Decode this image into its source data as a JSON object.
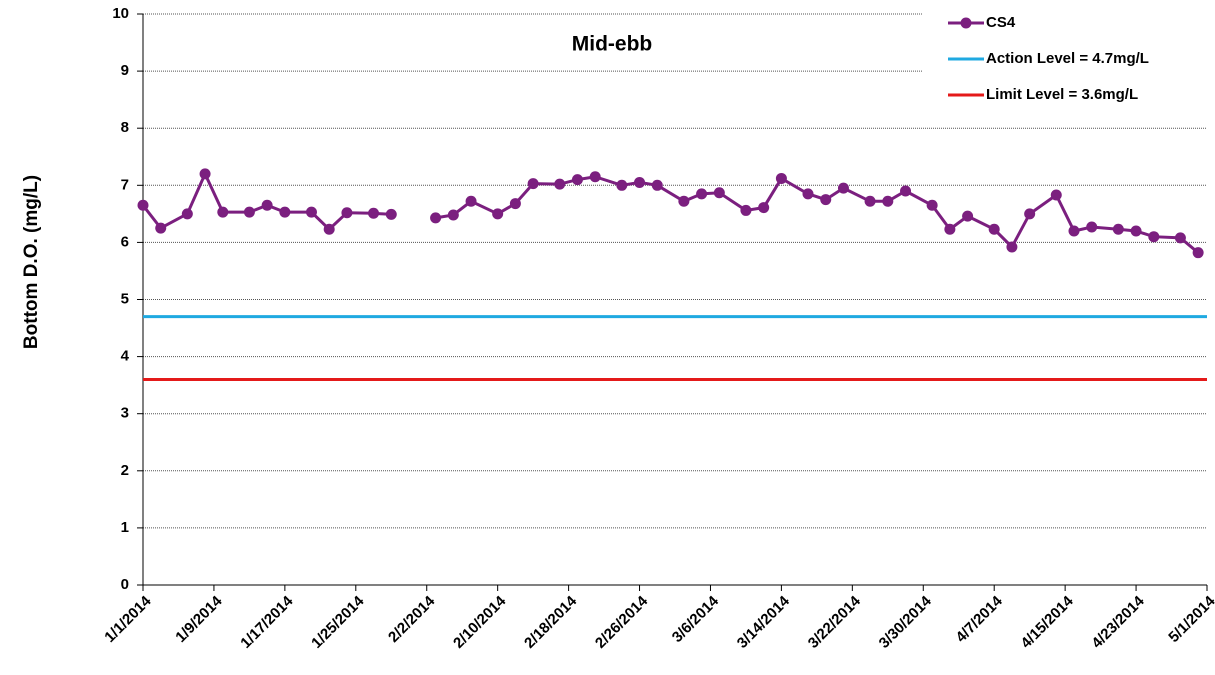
{
  "chart_data": {
    "type": "line",
    "title": "Mid-ebb",
    "ylabel": "Bottom D.O. (mg/L)",
    "x": [
      "1/1/2014",
      "1/3/2014",
      "1/6/2014",
      "1/8/2014",
      "1/10/2014",
      "1/13/2014",
      "1/15/2014",
      "1/17/2014",
      "1/20/2014",
      "1/22/2014",
      "1/24/2014",
      "1/27/2014",
      "1/29/2014",
      "1/31/2014",
      "2/3/2014",
      "2/5/2014",
      "2/7/2014",
      "2/10/2014",
      "2/12/2014",
      "2/14/2014",
      "2/17/2014",
      "2/19/2014",
      "2/21/2014",
      "2/24/2014",
      "2/26/2014",
      "2/28/2014",
      "3/3/2014",
      "3/5/2014",
      "3/7/2014",
      "3/10/2014",
      "3/12/2014",
      "3/14/2014",
      "3/17/2014",
      "3/19/2014",
      "3/21/2014",
      "3/24/2014",
      "3/26/2014",
      "3/28/2014",
      "3/31/2014",
      "4/2/2014",
      "4/4/2014",
      "4/7/2014",
      "4/9/2014",
      "4/11/2014",
      "4/14/2014",
      "4/16/2014",
      "4/18/2014",
      "4/21/2014",
      "4/23/2014",
      "4/25/2014",
      "4/28/2014",
      "4/30/2014"
    ],
    "series": [
      {
        "name": "CS4",
        "color": "#7b1f7f",
        "values": [
          6.65,
          6.25,
          6.5,
          7.2,
          6.53,
          6.53,
          6.65,
          6.53,
          6.53,
          6.23,
          6.52,
          6.51,
          6.49,
          null,
          6.43,
          6.48,
          6.72,
          6.5,
          6.68,
          7.03,
          7.02,
          7.1,
          7.15,
          7.0,
          7.05,
          7.0,
          6.72,
          6.85,
          6.87,
          6.56,
          6.61,
          7.12,
          6.85,
          6.75,
          6.95,
          6.72,
          6.72,
          6.9,
          6.65,
          6.23,
          6.46,
          6.23,
          5.92,
          6.5,
          6.83,
          6.2,
          6.27,
          6.23,
          6.2,
          6.1,
          6.08,
          5.82
        ]
      }
    ],
    "reference_lines": [
      {
        "name": "Action Level = 4.7mg/L",
        "value": 4.7,
        "color": "#1fa9e1"
      },
      {
        "name": "Limit Level = 3.6mg/L",
        "value": 3.6,
        "color": "#e41a1a"
      }
    ],
    "xlim": [
      "1/1/2014",
      "5/1/2014"
    ],
    "xticks": [
      "1/1/2014",
      "1/9/2014",
      "1/17/2014",
      "1/25/2014",
      "2/2/2014",
      "2/10/2014",
      "2/18/2014",
      "2/26/2014",
      "3/6/2014",
      "3/14/2014",
      "3/22/2014",
      "3/30/2014",
      "4/7/2014",
      "4/15/2014",
      "4/23/2014",
      "5/1/2014"
    ],
    "ylim": [
      0,
      10
    ],
    "yticks": [
      0,
      1,
      2,
      3,
      4,
      5,
      6,
      7,
      8,
      9,
      10
    ],
    "grid": true,
    "legend": "upper right"
  }
}
